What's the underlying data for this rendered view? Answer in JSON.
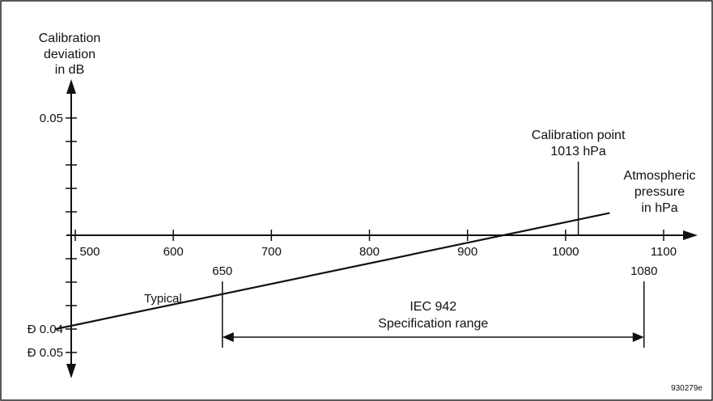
{
  "chart_data": {
    "type": "line",
    "title": "",
    "ylabel": [
      "Calibration",
      "deviation",
      "in dB"
    ],
    "xlabel": [
      "Atmospheric",
      "pressure",
      "in hPa"
    ],
    "x_ticks": [
      {
        "value": 500,
        "label": "500"
      },
      {
        "value": 600,
        "label": "600"
      },
      {
        "value": 700,
        "label": "700"
      },
      {
        "value": 800,
        "label": "800"
      },
      {
        "value": 900,
        "label": "900"
      },
      {
        "value": 1000,
        "label": "1000"
      },
      {
        "value": 1100,
        "label": "1100"
      }
    ],
    "y_ticks": [
      {
        "value": 0.05,
        "label": "0.05"
      },
      {
        "value": -0.04,
        "label": "Ð 0.04"
      },
      {
        "value": -0.05,
        "label": "Ð 0.05"
      }
    ],
    "y_minor_ticks": [
      0.04,
      0.03,
      0.02,
      0.01,
      -0.01,
      -0.02,
      -0.03
    ],
    "xlim": [
      470,
      1130
    ],
    "ylim": [
      -0.065,
      0.065
    ],
    "series": [
      {
        "x": [
          480,
          1045
        ],
        "y": [
          -0.04,
          0.0095
        ]
      }
    ],
    "line_label": "Typical",
    "calibration_point": {
      "x": 1013,
      "label": [
        "Calibration point",
        "1013 hPa"
      ]
    },
    "spec_range": {
      "from": 650,
      "to": 1080,
      "from_label": "650",
      "to_label": "1080",
      "label": [
        "IEC 942",
        "Specification range"
      ]
    },
    "figure_id": "930279e"
  }
}
